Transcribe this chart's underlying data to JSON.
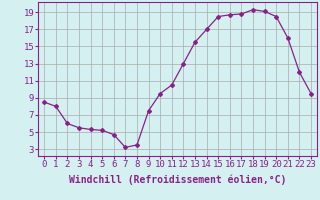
{
  "x": [
    0,
    1,
    2,
    3,
    4,
    5,
    6,
    7,
    8,
    9,
    10,
    11,
    12,
    13,
    14,
    15,
    16,
    17,
    18,
    19,
    20,
    21,
    22,
    23
  ],
  "y": [
    8.5,
    8.0,
    6.0,
    5.5,
    5.3,
    5.2,
    4.7,
    3.2,
    3.5,
    7.5,
    9.5,
    10.5,
    13.0,
    15.5,
    17.0,
    18.5,
    18.7,
    18.8,
    19.3,
    19.1,
    18.5,
    16.0,
    12.0,
    9.5
  ],
  "line_color": "#882288",
  "marker": "D",
  "marker_size": 2,
  "bg_color": "#d4f0f0",
  "grid_color": "#aaaaaa",
  "xlabel": "Windchill (Refroidissement éolien,°C)",
  "xlabel_fontsize": 7,
  "yticks": [
    3,
    5,
    7,
    9,
    11,
    13,
    15,
    17,
    19
  ],
  "xticks": [
    0,
    1,
    2,
    3,
    4,
    5,
    6,
    7,
    8,
    9,
    10,
    11,
    12,
    13,
    14,
    15,
    16,
    17,
    18,
    19,
    20,
    21,
    22,
    23
  ],
  "ylim": [
    2.2,
    20.2
  ],
  "xlim": [
    -0.5,
    23.5
  ],
  "tick_fontsize": 6.5,
  "spine_color": "#882288"
}
